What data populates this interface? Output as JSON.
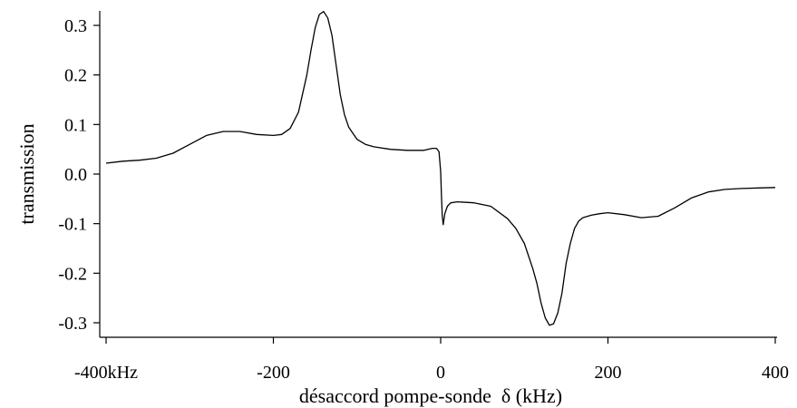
{
  "chart_data": {
    "type": "line",
    "title": "",
    "xlabel": "désaccord pompe-sonde  δ (kHz)",
    "ylabel": "transmission",
    "xlim": [
      -400,
      400
    ],
    "ylim": [
      -0.32,
      0.33
    ],
    "grid": false,
    "legend": "none",
    "line_color": "#000000",
    "x_ticks": [
      {
        "value": -400,
        "label": "-400kHz"
      },
      {
        "value": -200,
        "label": "-200"
      },
      {
        "value": 0,
        "label": "0"
      },
      {
        "value": 200,
        "label": "200"
      },
      {
        "value": 400,
        "label": "400"
      }
    ],
    "y_ticks": [
      {
        "value": 0.3,
        "label": "0.3"
      },
      {
        "value": 0.2,
        "label": "0.2"
      },
      {
        "value": 0.1,
        "label": "0.1"
      },
      {
        "value": 0.0,
        "label": "0.0"
      },
      {
        "value": -0.1,
        "label": "-0.1"
      },
      {
        "value": -0.2,
        "label": "-0.2"
      },
      {
        "value": -0.3,
        "label": "-0.3"
      }
    ],
    "series": [
      {
        "x": [
          -400,
          -380,
          -360,
          -340,
          -320,
          -300,
          -280,
          -260,
          -240,
          -220,
          -200,
          -190,
          -180,
          -170,
          -160,
          -155,
          -150,
          -145,
          -140,
          -135,
          -130,
          -125,
          -120,
          -115,
          -110,
          -100,
          -90,
          -80,
          -60,
          -40,
          -20,
          -10,
          -5,
          -2,
          0,
          1,
          2,
          3,
          5,
          8,
          12,
          20,
          40,
          60,
          80,
          90,
          100,
          110,
          115,
          120,
          125,
          130,
          135,
          140,
          145,
          150,
          155,
          160,
          165,
          170,
          180,
          190,
          200,
          220,
          240,
          260,
          280,
          300,
          320,
          340,
          360,
          380,
          400
        ],
        "y": [
          0.022,
          0.026,
          0.028,
          0.032,
          0.042,
          0.06,
          0.078,
          0.086,
          0.086,
          0.08,
          0.078,
          0.08,
          0.092,
          0.125,
          0.2,
          0.25,
          0.295,
          0.322,
          0.328,
          0.315,
          0.28,
          0.22,
          0.16,
          0.12,
          0.095,
          0.07,
          0.06,
          0.055,
          0.05,
          0.048,
          0.048,
          0.052,
          0.052,
          0.045,
          0.005,
          -0.045,
          -0.085,
          -0.102,
          -0.08,
          -0.065,
          -0.058,
          -0.056,
          -0.058,
          -0.065,
          -0.09,
          -0.11,
          -0.14,
          -0.19,
          -0.22,
          -0.26,
          -0.29,
          -0.305,
          -0.302,
          -0.28,
          -0.24,
          -0.18,
          -0.14,
          -0.11,
          -0.095,
          -0.088,
          -0.083,
          -0.08,
          -0.078,
          -0.082,
          -0.088,
          -0.085,
          -0.068,
          -0.048,
          -0.036,
          -0.031,
          -0.029,
          -0.028,
          -0.027
        ]
      }
    ]
  }
}
